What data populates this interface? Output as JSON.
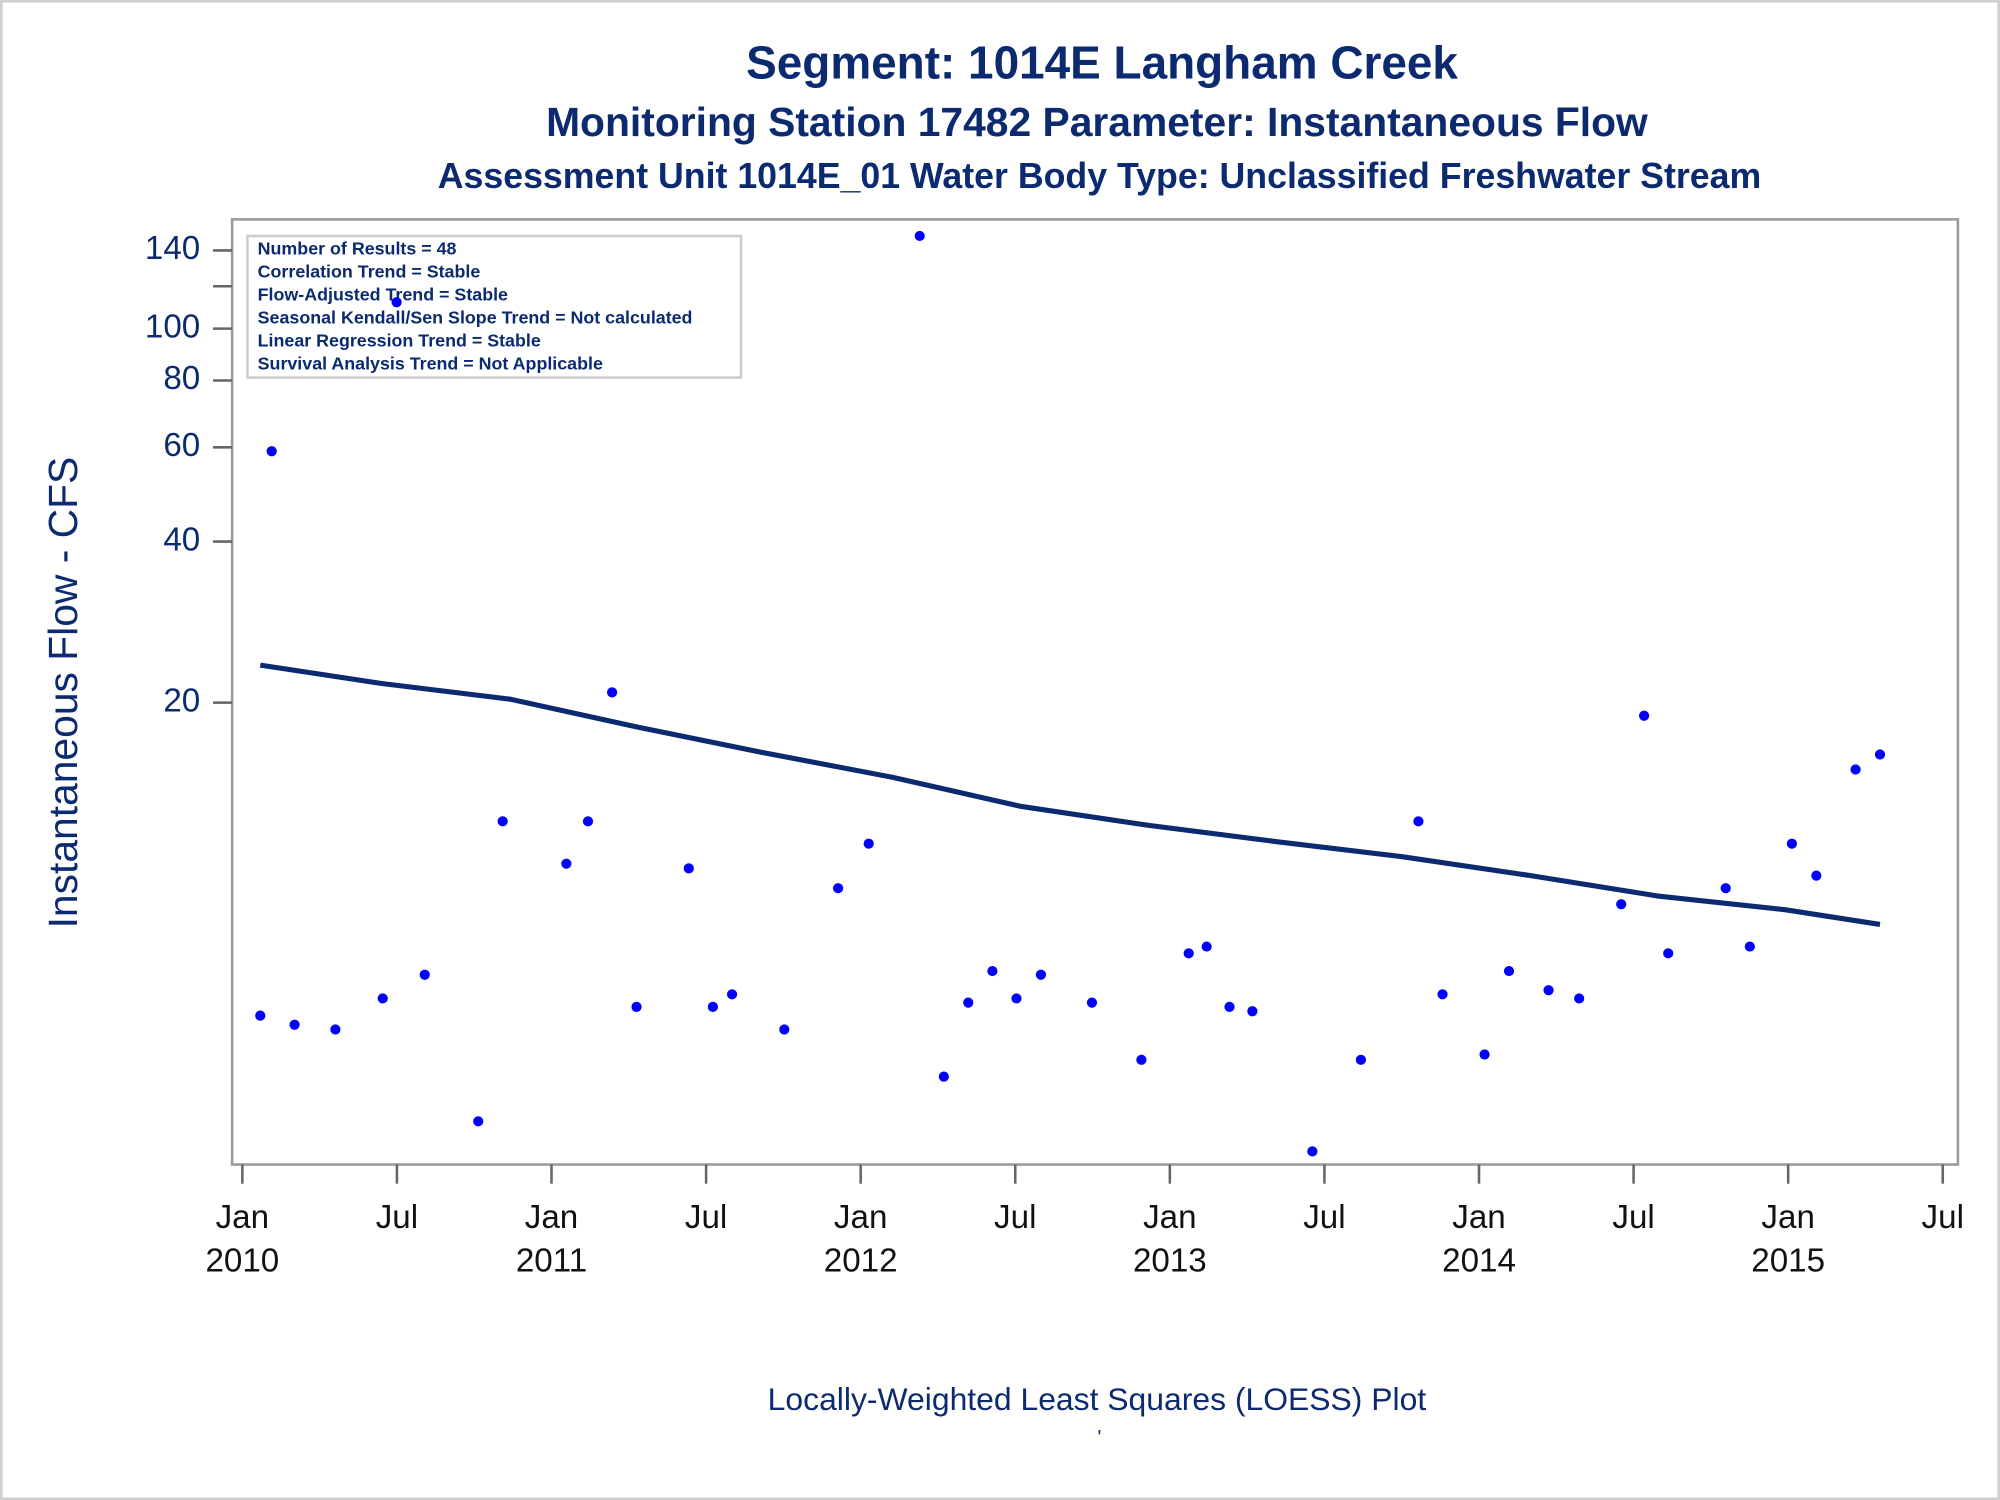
{
  "chart_data": {
    "type": "scatter",
    "titles": [
      "Segment: 1014E  Langham Creek",
      "Monitoring Station 17482 Parameter: Instantaneous Flow",
      "Assessment Unit 1014E_01   Water Body Type: Unclassified Freshwater Stream"
    ],
    "ylabel": "Instantaneous Flow - CFS",
    "footnote": "Locally-Weighted Least Squares (LOESS) Plot",
    "footnote_mark": "'",
    "inset_text": [
      "Number of Results = 48",
      "Correlation Trend = Stable",
      "Flow-Adjusted Trend = Stable",
      "Seasonal Kendall/Sen Slope Trend = Not calculated",
      "Linear Regression Trend = Stable",
      "Survival Analysis Trend = Not Applicable"
    ],
    "log_y": true,
    "xlim": [
      2009.967,
      2015.549
    ],
    "ylim": [
      2.74,
      160
    ],
    "yticks": [
      20,
      40,
      60,
      80,
      100,
      140
    ],
    "yminor_ticks": [
      120
    ],
    "xticks": [
      {
        "value": 2010.0,
        "label": "Jan"
      },
      {
        "value": 2010.5,
        "label": "Jul"
      },
      {
        "value": 2011.0,
        "label": "Jan"
      },
      {
        "value": 2011.5,
        "label": "Jul"
      },
      {
        "value": 2012.0,
        "label": "Jan"
      },
      {
        "value": 2012.5,
        "label": "Jul"
      },
      {
        "value": 2013.0,
        "label": "Jan"
      },
      {
        "value": 2013.5,
        "label": "Jul"
      },
      {
        "value": 2014.0,
        "label": "Jan"
      },
      {
        "value": 2014.5,
        "label": "Jul"
      },
      {
        "value": 2015.0,
        "label": "Jan"
      },
      {
        "value": 2015.5,
        "label": "Jul"
      }
    ],
    "xtick_years": [
      {
        "value": 2010.0,
        "label": "2010"
      },
      {
        "value": 2011.0,
        "label": "2011"
      },
      {
        "value": 2012.0,
        "label": "2012"
      },
      {
        "value": 2013.0,
        "label": "2013"
      },
      {
        "value": 2014.0,
        "label": "2014"
      },
      {
        "value": 2015.0,
        "label": "2015"
      }
    ],
    "series": [
      {
        "type": "scatter",
        "color": "#0000ff",
        "x": [
          2010.058,
          2010.095,
          2010.169,
          2010.301,
          2010.454,
          2010.499,
          2010.59,
          2010.763,
          2010.842,
          2011.048,
          2011.118,
          2011.196,
          2011.275,
          2011.444,
          2011.522,
          2011.584,
          2011.753,
          2011.927,
          2012.026,
          2012.191,
          2012.269,
          2012.348,
          2012.426,
          2012.504,
          2012.583,
          2012.748,
          2012.908,
          2013.061,
          2013.119,
          2013.193,
          2013.267,
          2013.461,
          2013.618,
          2013.804,
          2013.882,
          2014.018,
          2014.097,
          2014.225,
          2014.324,
          2014.46,
          2014.534,
          2014.612,
          2014.798,
          2014.876,
          2015.012,
          2015.091,
          2015.218,
          2015.297
        ],
        "values": [
          5.2,
          59,
          5.0,
          4.9,
          5.6,
          112,
          6.2,
          3.3,
          12.0,
          10.0,
          12.0,
          20.9,
          5.4,
          9.8,
          5.4,
          5.7,
          4.9,
          9.0,
          10.9,
          149,
          4.0,
          5.5,
          6.3,
          5.6,
          6.2,
          5.5,
          4.3,
          6.8,
          7.0,
          5.4,
          5.3,
          2.9,
          4.3,
          12.0,
          5.7,
          4.4,
          6.3,
          5.8,
          5.6,
          8.4,
          18.9,
          6.8,
          9.0,
          7.0,
          10.9,
          9.5,
          15.0,
          16.0
        ]
      },
      {
        "type": "line",
        "color": "#0b2a6f",
        "x": [
          2010.058,
          2010.454,
          2010.866,
          2011.279,
          2011.691,
          2012.104,
          2012.517,
          2012.929,
          2013.342,
          2013.754,
          2014.167,
          2014.579,
          2014.992,
          2015.297
        ],
        "values": [
          23.5,
          21.7,
          20.3,
          18.0,
          16.1,
          14.5,
          12.8,
          11.8,
          11.0,
          10.3,
          9.5,
          8.7,
          8.2,
          7.7
        ]
      }
    ]
  }
}
